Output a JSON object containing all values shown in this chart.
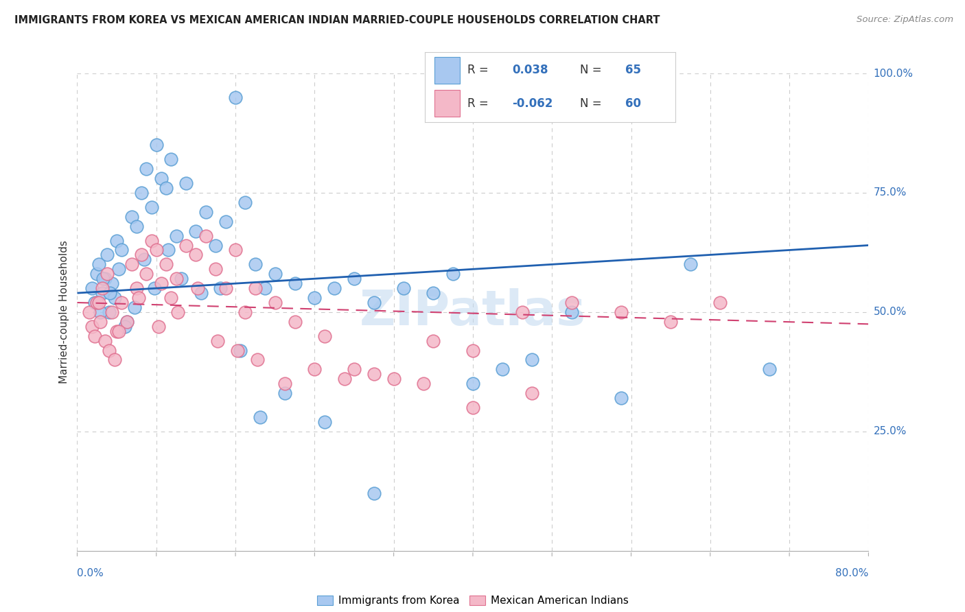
{
  "title": "IMMIGRANTS FROM KOREA VS MEXICAN AMERICAN INDIAN MARRIED-COUPLE HOUSEHOLDS CORRELATION CHART",
  "source": "Source: ZipAtlas.com",
  "ylabel": "Married-couple Households",
  "xlim": [
    0,
    80
  ],
  "ylim": [
    0,
    100
  ],
  "legend_r_blue": "R =  0.038",
  "legend_n_blue": "N = 65",
  "legend_r_pink": "R = -0.062",
  "legend_n_pink": "N = 60",
  "color_blue_fill": "#a8c8f0",
  "color_blue_edge": "#5a9fd4",
  "color_pink_fill": "#f4b8c8",
  "color_pink_edge": "#e07090",
  "color_trend_blue": "#2060b0",
  "color_trend_pink": "#d04070",
  "watermark": "ZIPatlas",
  "label_blue": "Immigrants from Korea",
  "label_pink": "Mexican American Indians",
  "blue_trend_y0": 54.0,
  "blue_trend_y1": 64.0,
  "pink_trend_y0": 52.0,
  "pink_trend_y1": 47.5,
  "blue_x": [
    1.5,
    1.8,
    2.0,
    2.2,
    2.5,
    2.8,
    3.0,
    3.2,
    3.5,
    3.8,
    4.0,
    4.2,
    4.5,
    5.0,
    5.5,
    6.0,
    6.5,
    7.0,
    7.5,
    8.0,
    8.5,
    9.0,
    9.5,
    10.0,
    11.0,
    12.0,
    13.0,
    14.0,
    15.0,
    16.0,
    17.0,
    18.0,
    19.0,
    20.0,
    22.0,
    24.0,
    26.0,
    28.0,
    30.0,
    33.0,
    36.0,
    38.0,
    40.0,
    43.0,
    46.0,
    50.0,
    55.0,
    62.0,
    70.0,
    2.3,
    2.6,
    3.3,
    4.8,
    5.8,
    6.8,
    7.8,
    9.2,
    10.5,
    12.5,
    14.5,
    16.5,
    18.5,
    21.0,
    25.0,
    30.0
  ],
  "blue_y": [
    55.0,
    52.0,
    58.0,
    60.0,
    54.0,
    57.0,
    62.0,
    50.0,
    56.0,
    53.0,
    65.0,
    59.0,
    63.0,
    48.0,
    70.0,
    68.0,
    75.0,
    80.0,
    72.0,
    85.0,
    78.0,
    76.0,
    82.0,
    66.0,
    77.0,
    67.0,
    71.0,
    64.0,
    69.0,
    95.0,
    73.0,
    60.0,
    55.0,
    58.0,
    56.0,
    53.0,
    55.0,
    57.0,
    52.0,
    55.0,
    54.0,
    58.0,
    35.0,
    38.0,
    40.0,
    50.0,
    32.0,
    60.0,
    38.0,
    50.0,
    57.0,
    54.0,
    47.0,
    51.0,
    61.0,
    55.0,
    63.0,
    57.0,
    54.0,
    55.0,
    42.0,
    28.0,
    33.0,
    27.0,
    12.0
  ],
  "pink_x": [
    1.2,
    1.5,
    1.8,
    2.0,
    2.3,
    2.5,
    2.8,
    3.0,
    3.2,
    3.5,
    3.8,
    4.0,
    4.5,
    5.0,
    5.5,
    6.0,
    6.5,
    7.0,
    7.5,
    8.0,
    8.5,
    9.0,
    9.5,
    10.0,
    11.0,
    12.0,
    13.0,
    14.0,
    15.0,
    16.0,
    17.0,
    18.0,
    20.0,
    22.0,
    25.0,
    28.0,
    32.0,
    36.0,
    40.0,
    45.0,
    50.0,
    55.0,
    60.0,
    65.0,
    2.2,
    4.2,
    6.2,
    8.2,
    10.2,
    12.2,
    14.2,
    16.2,
    18.2,
    21.0,
    24.0,
    27.0,
    30.0,
    35.0,
    40.0,
    46.0
  ],
  "pink_y": [
    50.0,
    47.0,
    45.0,
    52.0,
    48.0,
    55.0,
    44.0,
    58.0,
    42.0,
    50.0,
    40.0,
    46.0,
    52.0,
    48.0,
    60.0,
    55.0,
    62.0,
    58.0,
    65.0,
    63.0,
    56.0,
    60.0,
    53.0,
    57.0,
    64.0,
    62.0,
    66.0,
    59.0,
    55.0,
    63.0,
    50.0,
    55.0,
    52.0,
    48.0,
    45.0,
    38.0,
    36.0,
    44.0,
    42.0,
    50.0,
    52.0,
    50.0,
    48.0,
    52.0,
    52.0,
    46.0,
    53.0,
    47.0,
    50.0,
    55.0,
    44.0,
    42.0,
    40.0,
    35.0,
    38.0,
    36.0,
    37.0,
    35.0,
    30.0,
    33.0
  ]
}
